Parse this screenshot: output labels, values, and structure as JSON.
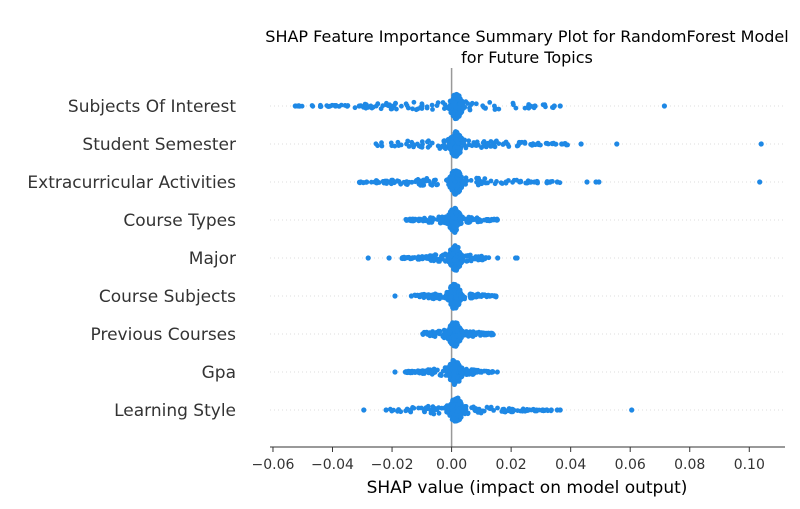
{
  "chart_data": {
    "type": "scatter",
    "title_lines": [
      "SHAP Feature Importance Summary Plot for RandomForest Model",
      "for Future Topics"
    ],
    "xlabel": "SHAP value (impact on model output)",
    "ylabel": "",
    "xlim": [
      -0.061,
      0.112
    ],
    "x_ticks": [
      -0.06,
      -0.04,
      -0.02,
      0.0,
      0.02,
      0.04,
      0.06,
      0.08,
      0.1
    ],
    "x_tick_labels": [
      "−0.06",
      "−0.04",
      "−0.02",
      "0.00",
      "0.02",
      "0.04",
      "0.06",
      "0.08",
      "0.10"
    ],
    "grid": false,
    "point_color": "#1E88E5",
    "features": [
      {
        "name": "Subjects Of Interest",
        "min": -0.052,
        "max": 0.0355,
        "core": 0.0015,
        "outliers": [
          -0.0525,
          -0.0515,
          -0.039,
          -0.035,
          -0.031,
          0.028,
          0.0345,
          0.0365,
          0.0715
        ]
      },
      {
        "name": "Student Semester",
        "min": -0.026,
        "max": 0.039,
        "core": 0.0015,
        "outliers": [
          0.037,
          0.0435,
          0.0555,
          0.104
        ]
      },
      {
        "name": "Extracurricular Activities",
        "min": -0.031,
        "max": 0.0365,
        "core": 0.0015,
        "outliers": [
          -0.0305,
          -0.0285,
          0.028,
          0.0355,
          0.0455,
          0.0485,
          0.0495,
          0.1035
        ]
      },
      {
        "name": "Course Types",
        "min": -0.0155,
        "max": 0.0155,
        "core": 0.001,
        "outliers": []
      },
      {
        "name": "Major",
        "min": -0.017,
        "max": 0.0125,
        "core": 0.0012,
        "outliers": [
          -0.028,
          -0.021,
          0.0155,
          0.0215,
          0.022
        ]
      },
      {
        "name": "Course Subjects",
        "min": -0.0125,
        "max": 0.015,
        "core": 0.001,
        "outliers": [
          -0.019,
          -0.0135
        ]
      },
      {
        "name": "Previous Courses",
        "min": -0.01,
        "max": 0.0145,
        "core": 0.001,
        "outliers": []
      },
      {
        "name": "Gpa",
        "min": -0.0155,
        "max": 0.0155,
        "core": 0.0012,
        "outliers": [
          -0.019,
          -0.0155
        ]
      },
      {
        "name": "Learning Style",
        "min": -0.021,
        "max": 0.0335,
        "core": 0.0015,
        "outliers": [
          -0.0295,
          -0.022,
          0.0335,
          0.0355,
          0.0365,
          0.0605
        ]
      }
    ]
  }
}
